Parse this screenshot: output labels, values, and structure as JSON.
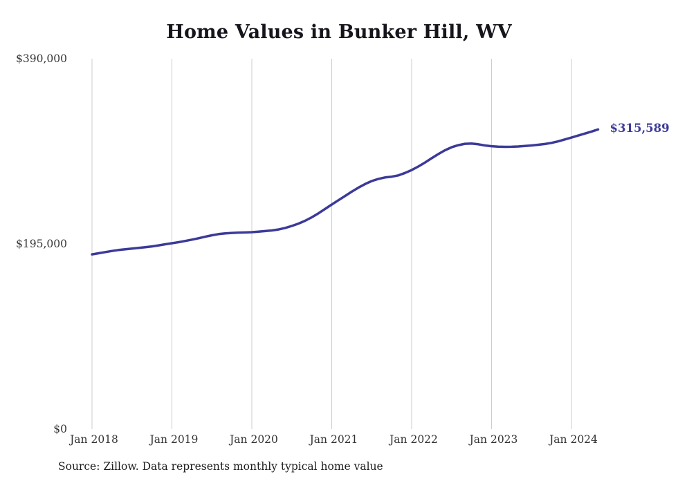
{
  "title": "Home Values in Bunker Hill, WV",
  "source_note": "Source: Zillow. Data represents monthly typical home value",
  "chart_data": {
    "type": "line",
    "title": "Home Values in Bunker Hill, WV",
    "series_name": "Monthly typical home value",
    "xlabel": "",
    "ylabel": "",
    "ylim": [
      0,
      390000
    ],
    "grid": "vertical-only",
    "legend": "none",
    "line_color": "#3b3a99",
    "grid_color": "#cccccc",
    "end_label": "$315,589",
    "x_tick_labels": [
      "Jan 2018",
      "Jan 2019",
      "Jan 2020",
      "Jan 2021",
      "Jan 2022",
      "Jan 2023",
      "Jan 2024"
    ],
    "y_ticks": [
      {
        "value": 390000,
        "label": "$390,000"
      },
      {
        "value": 195000,
        "label": "$195,000"
      },
      {
        "value": 0,
        "label": "$0"
      }
    ],
    "x": [
      "2018-01",
      "2018-02",
      "2018-03",
      "2018-04",
      "2018-05",
      "2018-06",
      "2018-07",
      "2018-08",
      "2018-09",
      "2018-10",
      "2018-11",
      "2018-12",
      "2019-01",
      "2019-02",
      "2019-03",
      "2019-04",
      "2019-05",
      "2019-06",
      "2019-07",
      "2019-08",
      "2019-09",
      "2019-10",
      "2019-11",
      "2019-12",
      "2020-01",
      "2020-02",
      "2020-03",
      "2020-04",
      "2020-05",
      "2020-06",
      "2020-07",
      "2020-08",
      "2020-09",
      "2020-10",
      "2020-11",
      "2020-12",
      "2021-01",
      "2021-02",
      "2021-03",
      "2021-04",
      "2021-05",
      "2021-06",
      "2021-07",
      "2021-08",
      "2021-09",
      "2021-10",
      "2021-11",
      "2021-12",
      "2022-01",
      "2022-02",
      "2022-03",
      "2022-04",
      "2022-05",
      "2022-06",
      "2022-07",
      "2022-08",
      "2022-09",
      "2022-10",
      "2022-11",
      "2022-12",
      "2023-01",
      "2023-02",
      "2023-03",
      "2023-04",
      "2023-05",
      "2023-06",
      "2023-07",
      "2023-08",
      "2023-09",
      "2023-10",
      "2023-11",
      "2023-12",
      "2024-01",
      "2024-02",
      "2024-03",
      "2024-04",
      "2024-05"
    ],
    "values": [
      184000,
      185200,
      186400,
      187600,
      188600,
      189400,
      190100,
      190800,
      191500,
      192400,
      193500,
      194600,
      195700,
      196800,
      198100,
      199500,
      201000,
      202600,
      204100,
      205300,
      206100,
      206600,
      206900,
      207100,
      207400,
      207900,
      208500,
      209200,
      210200,
      211800,
      213900,
      216400,
      219400,
      223000,
      227200,
      231800,
      236500,
      241000,
      245500,
      250000,
      254200,
      258000,
      261200,
      263500,
      265000,
      265800,
      267200,
      269700,
      272800,
      276500,
      280700,
      285200,
      289600,
      293600,
      296800,
      299000,
      300400,
      300700,
      299900,
      298700,
      297900,
      297400,
      297200,
      297300,
      297600,
      298100,
      298700,
      299400,
      300200,
      301400,
      303000,
      305000,
      307000,
      309100,
      311200,
      313300,
      315589
    ]
  }
}
